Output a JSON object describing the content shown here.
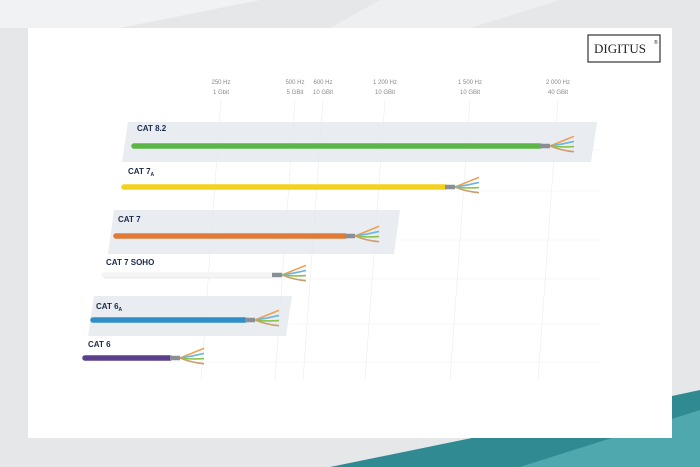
{
  "brand": {
    "name": "DIGITUS",
    "mark": "®"
  },
  "columns": [
    {
      "frequency": "250 Hz",
      "speed": "1 Gbit"
    },
    {
      "frequency": "500 Hz",
      "speed": "5 GBit"
    },
    {
      "frequency": "600 Hz",
      "speed": "10 GBit"
    },
    {
      "frequency": "1 200 Hz",
      "speed": "10 GBit"
    },
    {
      "frequency": "1 500 Hz",
      "speed": "10 GBit"
    },
    {
      "frequency": "2 000 Hz",
      "speed": "40 GBit"
    }
  ],
  "cables": [
    {
      "label": "CAT 8.2"
    },
    {
      "label": "CAT 7",
      "subscript": "A"
    },
    {
      "label": "CAT 7"
    },
    {
      "label": "CAT 7 SOHO"
    },
    {
      "label": "CAT 6",
      "subscript": "A"
    },
    {
      "label": "CAT 6"
    }
  ]
}
